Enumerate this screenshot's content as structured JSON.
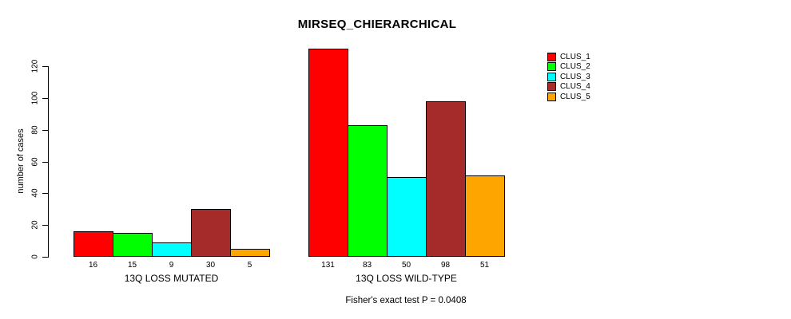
{
  "figure": {
    "title": "MIRSEQ_CHIERARCHICAL",
    "annotation": "Fisher's exact test P = 0.0408"
  },
  "chart_data": {
    "type": "bar",
    "title": "MIRSEQ_CHIERARCHICAL",
    "xlabel": "",
    "ylabel": "number of cases",
    "ylim": [
      0,
      131
    ],
    "yticks": [
      0,
      20,
      40,
      60,
      80,
      100,
      120
    ],
    "grid": false,
    "legend_position": "top-right",
    "bar_value_labels": true,
    "categories": [
      "13Q LOSS MUTATED",
      "13Q LOSS WILD-TYPE"
    ],
    "series": [
      {
        "name": "CLUS_1",
        "color": "#FF0000",
        "values": [
          16,
          131
        ]
      },
      {
        "name": "CLUS_2",
        "color": "#00FF00",
        "values": [
          15,
          83
        ]
      },
      {
        "name": "CLUS_3",
        "color": "#00FFFF",
        "values": [
          9,
          50
        ]
      },
      {
        "name": "CLUS_4",
        "color": "#A52A2A",
        "values": [
          30,
          98
        ]
      },
      {
        "name": "CLUS_5",
        "color": "#FFA500",
        "values": [
          5,
          51
        ]
      }
    ],
    "annotation": "Fisher's exact test P = 0.0408"
  }
}
